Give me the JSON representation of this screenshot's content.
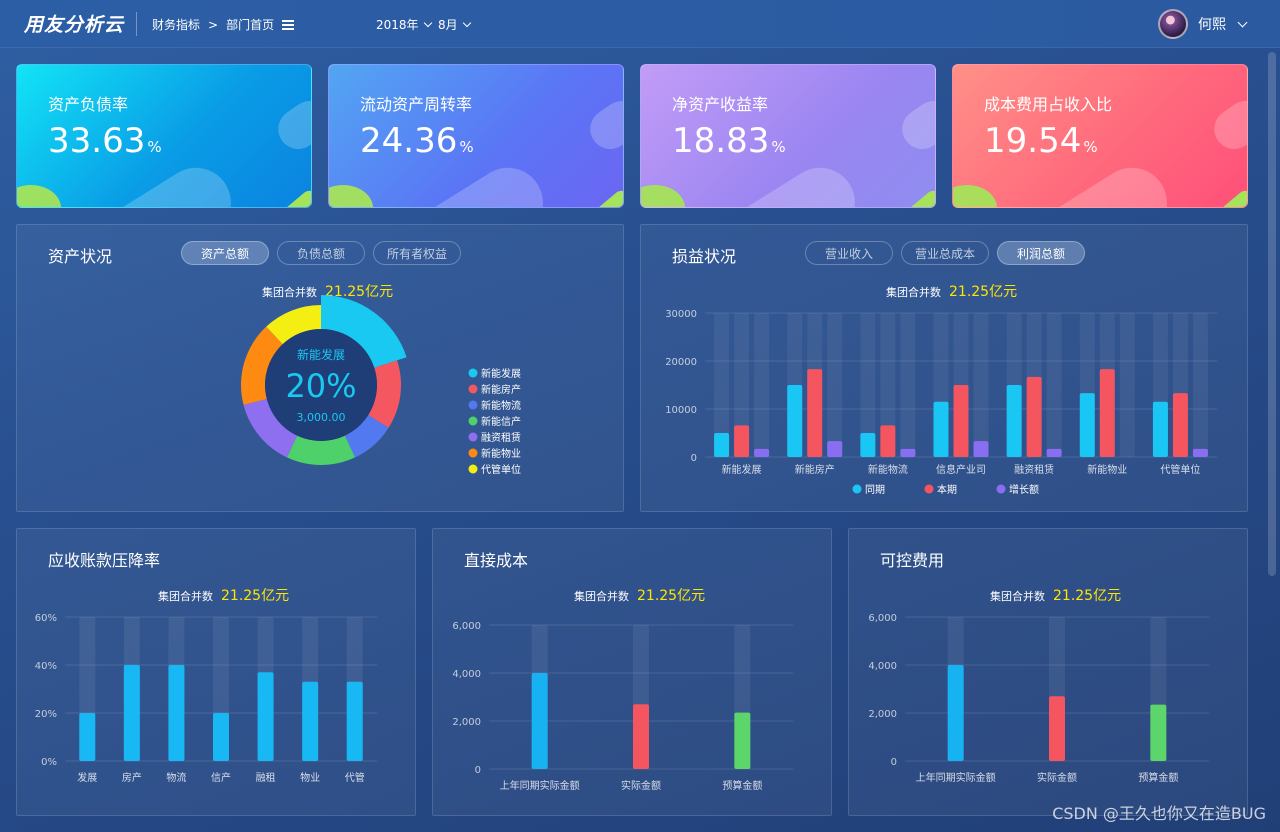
{
  "header": {
    "logo": "用友分析云",
    "breadcrumb": [
      "财务指标",
      "部门首页"
    ],
    "breadcrumb_sep": ">",
    "year": "2018年",
    "month": "8月",
    "user": "何熙"
  },
  "kpis": [
    {
      "title": "资产负债率",
      "value": "33.63",
      "unit": "%"
    },
    {
      "title": "流动资产周转率",
      "value": "24.36",
      "unit": "%"
    },
    {
      "title": "净资产收益率",
      "value": "18.83",
      "unit": "%"
    },
    {
      "title": "成本费用占收入比",
      "value": "19.54",
      "unit": "%"
    }
  ],
  "assets": {
    "title": "资产状况",
    "tabs": [
      "资产总额",
      "负债总额",
      "所有者权益"
    ],
    "active_tab": 0,
    "agg_label": "集团合并数",
    "agg_value": "21.25亿元",
    "center_label": "新能发展",
    "center_pct": "20%",
    "center_value": "3,000.00",
    "colors": {
      "bg": "#1f3d76"
    }
  },
  "profit": {
    "title": "损益状况",
    "tabs": [
      "营业收入",
      "营业总成本",
      "利润总额"
    ],
    "active_tab": 2,
    "agg_label": "集团合并数",
    "agg_value": "21.25亿元"
  },
  "receivable": {
    "title": "应收账款压降率",
    "agg_label": "集团合并数",
    "agg_value": "21.25亿元"
  },
  "direct_cost": {
    "title": "直接成本",
    "agg_label": "集团合并数",
    "agg_value": "21.25亿元"
  },
  "control_cost": {
    "title": "可控费用",
    "agg_label": "集团合并数",
    "agg_value": "21.25亿元"
  },
  "watermark": "CSDN @王久也你又在造BUG",
  "chart_data": [
    {
      "id": "asset-donut",
      "type": "pie",
      "slices": [
        {
          "name": "新能发展",
          "value": 20,
          "color": "#19c9f2"
        },
        {
          "name": "新能房产",
          "value": 14,
          "color": "#f55760"
        },
        {
          "name": "新能物流",
          "value": 9,
          "color": "#5379f0"
        },
        {
          "name": "新能信产",
          "value": 14,
          "color": "#4ed06a"
        },
        {
          "name": "融资租赁",
          "value": 14,
          "color": "#8e6ff0"
        },
        {
          "name": "新能物业",
          "value": 17,
          "color": "#ff8a12"
        },
        {
          "name": "代管单位",
          "value": 12,
          "color": "#f4ee12"
        }
      ]
    },
    {
      "id": "profit-bars",
      "type": "bar",
      "categories": [
        "新能发展",
        "新能房产",
        "新能物流",
        "信息产业司",
        "融资租赁",
        "新能物业",
        "代管单位"
      ],
      "ylim": [
        0,
        30000
      ],
      "yticks": [
        "0",
        "10000",
        "20000",
        "30000"
      ],
      "legend": [
        "同期",
        "本期",
        "增长额"
      ],
      "series": [
        {
          "name": "同期",
          "values": [
            5000,
            15000,
            5000,
            11500,
            15000,
            13300,
            11500
          ],
          "color": "#19c6f4"
        },
        {
          "name": "本期",
          "values": [
            6600,
            18300,
            6600,
            15000,
            16700,
            18300,
            13300
          ],
          "color": "#f4555e"
        },
        {
          "name": "增长额",
          "values": [
            1700,
            3300,
            1700,
            3300,
            1700,
            0,
            1700
          ],
          "color": "#8a6ef2"
        }
      ]
    },
    {
      "id": "receivable-bars",
      "type": "bar",
      "categories": [
        "发展",
        "房产",
        "物流",
        "信产",
        "融租",
        "物业",
        "代管"
      ],
      "ylim": [
        0,
        60
      ],
      "yticks": [
        "0%",
        "20%",
        "40%",
        "60%"
      ],
      "values": [
        20,
        40,
        40,
        20,
        37,
        33,
        33
      ]
    },
    {
      "id": "direct-cost-bars",
      "type": "bar",
      "categories": [
        "上年同期实际金额",
        "实际金额",
        "预算金额"
      ],
      "ylim": [
        0,
        6000
      ],
      "yticks": [
        "0",
        "2,000",
        "4,000",
        "6,000"
      ],
      "values": [
        4000,
        2700,
        2350
      ],
      "colors": [
        "#17b2f2",
        "#f4555e",
        "#5cd66a"
      ]
    },
    {
      "id": "control-cost-bars",
      "type": "bar",
      "categories": [
        "上年同期实际金额",
        "实际金额",
        "预算金额"
      ],
      "ylim": [
        0,
        6000
      ],
      "yticks": [
        "0",
        "2,000",
        "4,000",
        "6,000"
      ],
      "values": [
        4000,
        2700,
        2350
      ],
      "colors": [
        "#17b2f2",
        "#f4555e",
        "#5cd66a"
      ]
    }
  ]
}
